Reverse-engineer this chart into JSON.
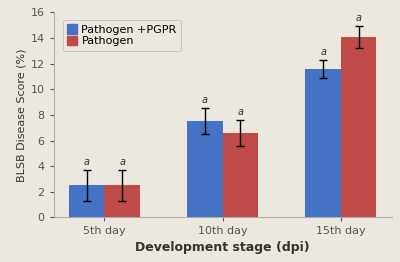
{
  "categories": [
    "5th day",
    "10th day",
    "15th day"
  ],
  "series": [
    {
      "label": "Pathogen +PGPR",
      "color": "#4472C4",
      "values": [
        2.5,
        7.5,
        11.6
      ],
      "errors": [
        1.2,
        1.0,
        0.7
      ]
    },
    {
      "label": "Pathogen",
      "color": "#BE4B48",
      "values": [
        2.5,
        6.6,
        14.1
      ],
      "errors": [
        1.2,
        1.0,
        0.85
      ]
    }
  ],
  "ylabel": "BLSB Disease Score (%)",
  "xlabel": "Development stage (dpi)",
  "ylim": [
    0,
    16
  ],
  "yticks": [
    0,
    2,
    4,
    6,
    8,
    10,
    12,
    14,
    16
  ],
  "bar_width": 0.3,
  "significance_labels": [
    "a",
    "a"
  ],
  "background_color": "#ede8df",
  "axis_fontsize": 8.5,
  "tick_fontsize": 8,
  "legend_fontsize": 8,
  "xlabel_fontsize": 9,
  "ylabel_fontsize": 8
}
